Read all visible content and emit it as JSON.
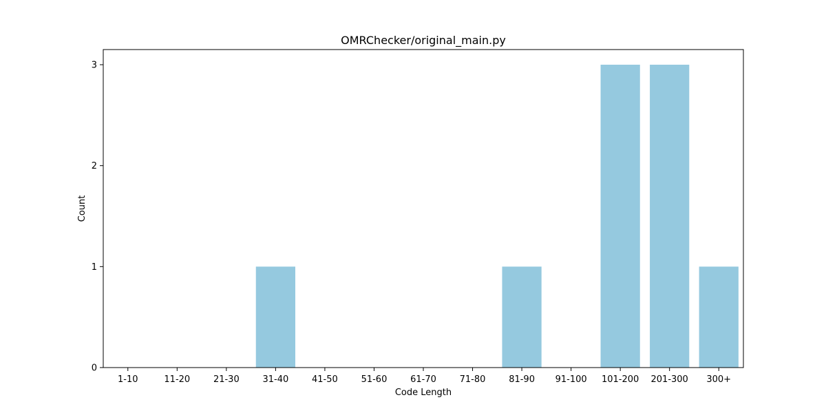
{
  "chart_data": {
    "type": "bar",
    "title": "OMRChecker/original_main.py",
    "xlabel": "Code Length",
    "ylabel": "Count",
    "categories": [
      "1-10",
      "11-20",
      "21-30",
      "31-40",
      "41-50",
      "51-60",
      "61-70",
      "71-80",
      "81-90",
      "91-100",
      "101-200",
      "201-300",
      "300+"
    ],
    "values": [
      0,
      0,
      0,
      1,
      0,
      0,
      0,
      0,
      1,
      0,
      3,
      3,
      1
    ],
    "ylim": [
      0,
      3.15
    ],
    "yticks": [
      0,
      1,
      2,
      3
    ],
    "grid": false,
    "bar_color": "#95c9df"
  }
}
